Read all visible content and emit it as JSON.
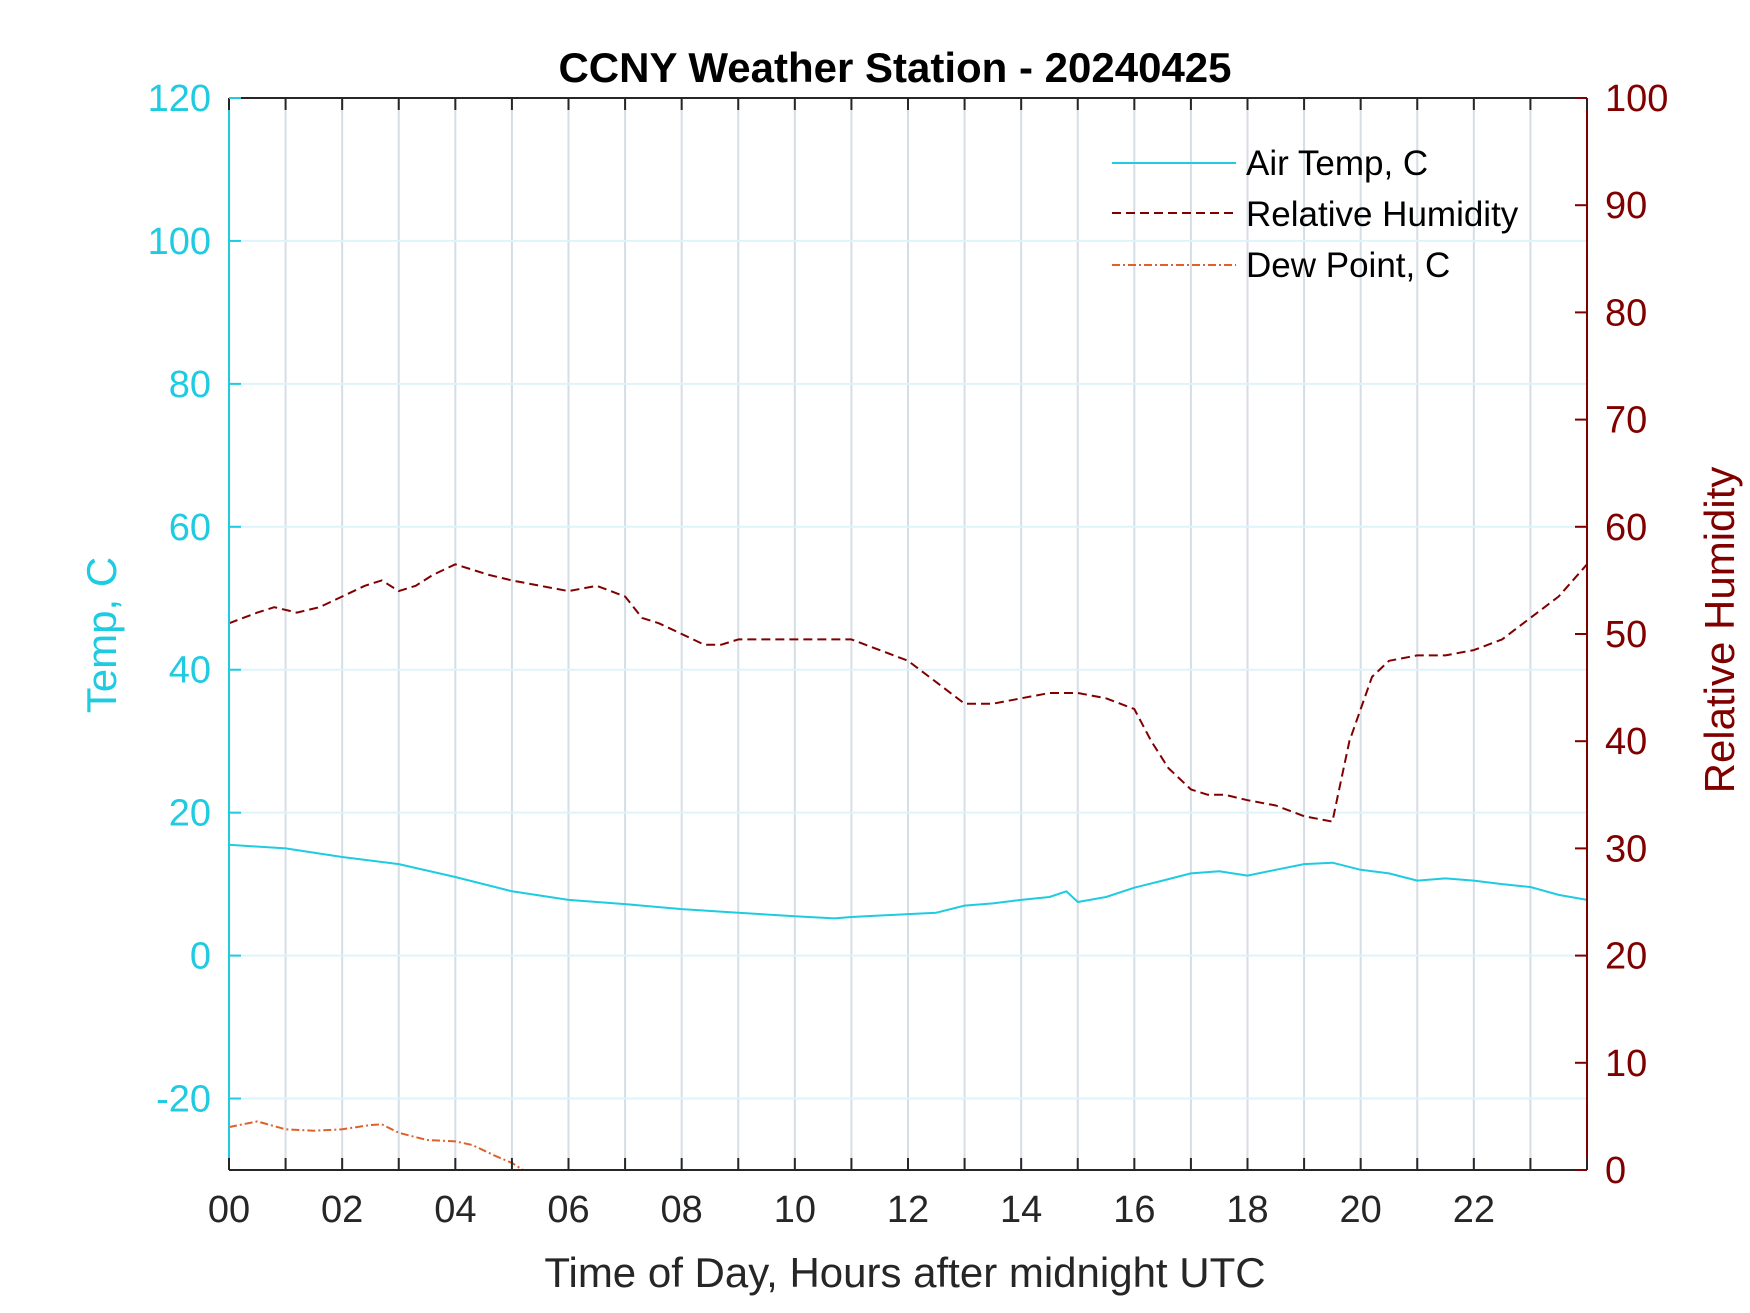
{
  "chart_data": {
    "type": "line",
    "title": "CCNY Weather Station - 20240425",
    "xlabel": "Time of Day, Hours after midnight UTC",
    "ylabel_left": "Temp, C",
    "ylabel_right": "Relative Humidity",
    "xlim": [
      0,
      24
    ],
    "ylim_left": [
      -30,
      120
    ],
    "ylim_right": [
      0,
      100
    ],
    "xticks": [
      0,
      2,
      4,
      6,
      8,
      10,
      12,
      14,
      16,
      18,
      20,
      22
    ],
    "xtick_labels": [
      "00",
      "02",
      "04",
      "06",
      "08",
      "10",
      "12",
      "14",
      "16",
      "18",
      "20",
      "22"
    ],
    "yticks_left": [
      -20,
      0,
      20,
      40,
      60,
      80,
      100,
      120
    ],
    "ytick_labels_left": [
      "-20",
      "0",
      "20",
      "40",
      "60",
      "80",
      "100",
      "120"
    ],
    "yticks_right": [
      0,
      10,
      20,
      30,
      40,
      50,
      60,
      70,
      80,
      90,
      100
    ],
    "ytick_labels_right": [
      "0",
      "10",
      "20",
      "30",
      "40",
      "50",
      "60",
      "70",
      "80",
      "90",
      "100"
    ],
    "grid": true,
    "legend_position": "top-right",
    "colors": {
      "temp": "#1ecbe1",
      "rh": "#800000",
      "dew": "#e0602a",
      "grid_x": "#d5dde5",
      "grid_y": "#dff3fa",
      "axis": "#262626"
    },
    "series": [
      {
        "name": "Air Temp, C",
        "axis": "left",
        "style": "solid",
        "x": [
          0,
          1,
          2,
          3,
          4,
          5,
          6,
          7,
          8,
          9,
          10,
          10.7,
          11,
          12,
          12.5,
          13,
          13.5,
          14,
          14.5,
          14.8,
          15,
          15.5,
          16,
          16.5,
          17,
          17.5,
          18,
          18.5,
          19,
          19.5,
          20,
          20.5,
          21,
          21.5,
          22,
          22.5,
          23,
          23.5,
          24
        ],
        "values": [
          15.5,
          15,
          13.8,
          12.8,
          11,
          9,
          7.8,
          7.2,
          6.5,
          6,
          5.5,
          5.2,
          5.4,
          5.8,
          6,
          7,
          7.3,
          7.8,
          8.2,
          9,
          7.5,
          8.2,
          9.5,
          10.5,
          11.5,
          11.8,
          11.2,
          12,
          12.8,
          13,
          12,
          11.5,
          10.5,
          10.8,
          10.5,
          10,
          9.6,
          8.5,
          7.8
        ]
      },
      {
        "name": "Relative Humidity",
        "axis": "right",
        "style": "dashed",
        "x": [
          0,
          0.5,
          0.8,
          1.2,
          1.6,
          2,
          2.4,
          2.7,
          3,
          3.3,
          3.6,
          4,
          4.3,
          4.6,
          5,
          5.5,
          6,
          6.5,
          7,
          7.3,
          7.6,
          8,
          8.4,
          8.7,
          9,
          9.5,
          10,
          10.5,
          11,
          11.5,
          12,
          12.5,
          13,
          13.5,
          14,
          14.5,
          15,
          15.5,
          16,
          16.3,
          16.6,
          17,
          17.3,
          17.6,
          18,
          18.5,
          19,
          19.5,
          19.6,
          19.8,
          20,
          20.2,
          20.5,
          21,
          21.5,
          22,
          22.5,
          23,
          23.5,
          24
        ],
        "values": [
          51,
          52,
          52.5,
          52,
          52.5,
          53.5,
          54.5,
          55,
          54,
          54.5,
          55.5,
          56.5,
          56,
          55.5,
          55,
          54.5,
          54,
          54.5,
          53.5,
          51.5,
          51,
          50,
          49,
          49,
          49.5,
          49.5,
          49.5,
          49.5,
          49.5,
          48.5,
          47.5,
          45.5,
          43.5,
          43.5,
          44,
          44.5,
          44.5,
          44,
          43,
          40,
          37.5,
          35.5,
          35,
          35,
          34.5,
          34,
          33,
          32.5,
          35,
          40,
          43,
          46,
          47.5,
          48,
          48,
          48.5,
          49.5,
          51.5,
          53.5,
          56.5
        ]
      },
      {
        "name": "Dew Point, C",
        "axis": "left",
        "style": "dashdot",
        "x": [
          0,
          0.5,
          1,
          1.5,
          2,
          2.5,
          2.7,
          3,
          3.5,
          4,
          4.3,
          4.7,
          5,
          5.2,
          5.5
        ],
        "values": [
          -24,
          -23.2,
          -24.3,
          -24.5,
          -24.3,
          -23.7,
          -23.6,
          -24.8,
          -25.8,
          -26,
          -26.5,
          -28,
          -29,
          -30,
          -30
        ]
      }
    ]
  }
}
